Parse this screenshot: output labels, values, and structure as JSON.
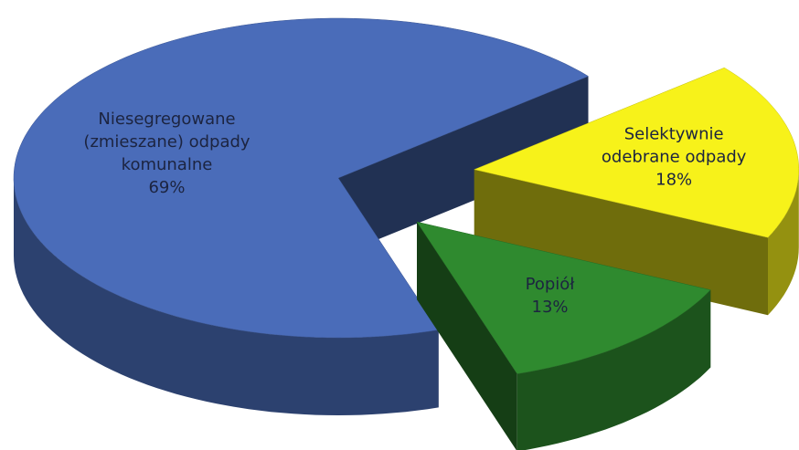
{
  "chart_data": {
    "type": "pie3d",
    "categories": [
      "Niesegregowane (zmieszane) odpady komunalne",
      "Selektywnie odebrane odpady",
      "Popiół"
    ],
    "values": [
      69,
      18,
      13
    ],
    "value_labels": [
      "69%",
      "18%",
      "13%"
    ],
    "colors": [
      "#4a6cb9",
      "#f7f21a",
      "#2f8a2f"
    ]
  }
}
